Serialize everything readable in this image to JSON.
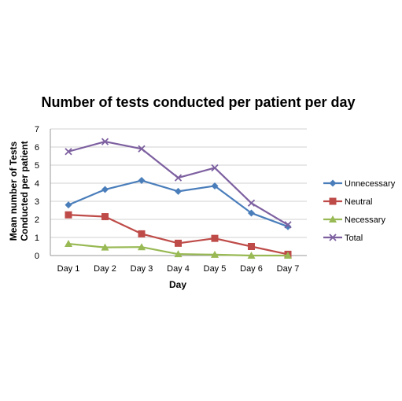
{
  "chart_data": {
    "type": "line",
    "title": "Number of tests conducted per patient per day",
    "xlabel": "Day",
    "ylabel_lines": [
      "Mean number of Tests",
      "Conducted per patient"
    ],
    "categories": [
      "Day 1",
      "Day 2",
      "Day 3",
      "Day 4",
      "Day 5",
      "Day 6",
      "Day 7"
    ],
    "ylim": [
      0,
      7
    ],
    "yticks": [
      "0",
      "1",
      "2",
      "3",
      "4",
      "5",
      "6",
      "7"
    ],
    "grid": true,
    "legend_position": "right",
    "series": [
      {
        "name": "Unnecessary",
        "color": "#4A7EBB",
        "marker": "diamond",
        "values": [
          2.8,
          3.65,
          4.15,
          3.55,
          3.85,
          2.35,
          1.6
        ]
      },
      {
        "name": "Neutral",
        "color": "#BE4B48",
        "marker": "square",
        "values": [
          2.25,
          2.15,
          1.2,
          0.68,
          0.95,
          0.5,
          0.07
        ]
      },
      {
        "name": "Necessary",
        "color": "#98B954",
        "marker": "triangle",
        "values": [
          0.65,
          0.45,
          0.47,
          0.08,
          0.05,
          0.0,
          0.0
        ]
      },
      {
        "name": "Total",
        "color": "#7D60A0",
        "marker": "x",
        "values": [
          5.75,
          6.3,
          5.9,
          4.3,
          4.85,
          2.9,
          1.7
        ]
      }
    ]
  }
}
